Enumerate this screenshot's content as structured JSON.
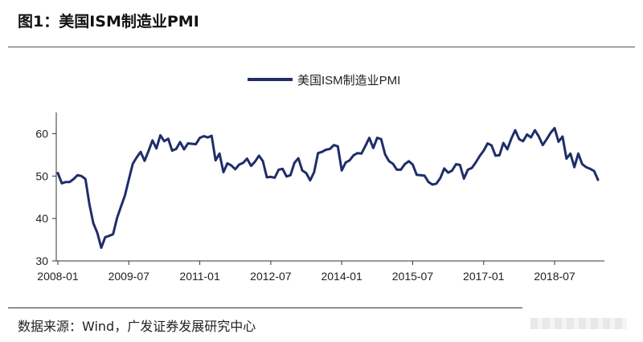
{
  "figure_title": "图1：美国ISM制造业PMI",
  "source": "数据来源：Wind，广发证券发展研究中心",
  "colors": {
    "line": "#1f2d6b",
    "axis": "#333333"
  },
  "chart_data": {
    "type": "line",
    "title": "",
    "xlabel": "",
    "ylabel": "",
    "ylim": [
      30,
      65
    ],
    "yticks": [
      30,
      40,
      50,
      60
    ],
    "xticks": [
      "2008-01",
      "2009-07",
      "2011-01",
      "2012-07",
      "2014-01",
      "2015-07",
      "2017-01",
      "2018-07"
    ],
    "legend": "top-center",
    "grid": false,
    "series": [
      {
        "name": "美国ISM制造业PMI",
        "x_start": "2008-01",
        "frequency": "monthly",
        "values": [
          50.7,
          48.3,
          48.6,
          48.6,
          49.3,
          50.2,
          50.0,
          49.3,
          43.4,
          38.9,
          36.6,
          33.1,
          35.6,
          35.9,
          36.3,
          40.1,
          42.8,
          45.4,
          49.2,
          52.9,
          54.4,
          55.7,
          53.6,
          55.9,
          58.4,
          56.5,
          59.6,
          58.2,
          58.8,
          56.0,
          56.4,
          58.0,
          56.3,
          57.7,
          57.6,
          57.5,
          59.0,
          59.4,
          59.1,
          59.5,
          53.7,
          55.3,
          50.9,
          53.0,
          52.5,
          51.6,
          52.7,
          53.1,
          54.1,
          52.4,
          53.4,
          54.8,
          53.5,
          49.7,
          49.8,
          49.6,
          51.5,
          51.7,
          49.9,
          50.2,
          53.1,
          54.2,
          51.3,
          50.7,
          49.0,
          50.9,
          55.4,
          55.7,
          56.2,
          56.4,
          57.3,
          57.0,
          51.3,
          53.2,
          53.7,
          54.9,
          55.4,
          55.3,
          57.1,
          59.0,
          56.6,
          59.0,
          58.7,
          55.1,
          53.5,
          52.9,
          51.5,
          51.5,
          52.8,
          53.5,
          52.7,
          50.3,
          50.2,
          50.1,
          48.6,
          48.0,
          48.2,
          49.5,
          51.8,
          50.8,
          51.3,
          52.8,
          52.6,
          49.4,
          51.5,
          51.9,
          53.2,
          54.7,
          56.0,
          57.7,
          57.2,
          54.8,
          54.9,
          57.8,
          56.3,
          58.8,
          60.8,
          58.7,
          58.2,
          59.8,
          59.1,
          60.8,
          59.3,
          57.3,
          58.7,
          60.2,
          61.3,
          58.1,
          59.3,
          54.1,
          55.3,
          52.1,
          55.3,
          52.8,
          52.1,
          51.7,
          51.2,
          49.1
        ]
      }
    ]
  }
}
